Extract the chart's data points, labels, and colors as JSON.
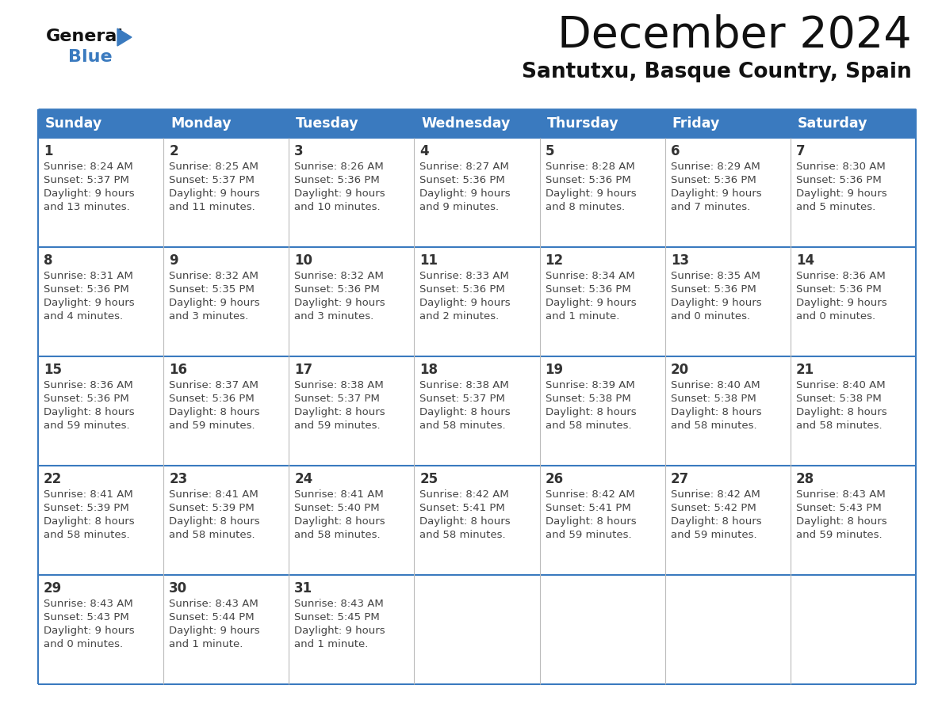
{
  "title": "December 2024",
  "subtitle": "Santutxu, Basque Country, Spain",
  "header_color": "#3a7abf",
  "header_text_color": "#ffffff",
  "days_of_week": [
    "Sunday",
    "Monday",
    "Tuesday",
    "Wednesday",
    "Thursday",
    "Friday",
    "Saturday"
  ],
  "cell_bg_color": "#ffffff",
  "border_color": "#3a7abf",
  "row_sep_color": "#3a7abf",
  "day_num_color": "#333333",
  "text_color": "#444444",
  "calendar": [
    [
      {
        "day": 1,
        "sunrise": "8:24 AM",
        "sunset": "5:37 PM",
        "daylight_h": "9 hours",
        "daylight_m": "and 13 minutes."
      },
      {
        "day": 2,
        "sunrise": "8:25 AM",
        "sunset": "5:37 PM",
        "daylight_h": "9 hours",
        "daylight_m": "and 11 minutes."
      },
      {
        "day": 3,
        "sunrise": "8:26 AM",
        "sunset": "5:36 PM",
        "daylight_h": "9 hours",
        "daylight_m": "and 10 minutes."
      },
      {
        "day": 4,
        "sunrise": "8:27 AM",
        "sunset": "5:36 PM",
        "daylight_h": "9 hours",
        "daylight_m": "and 9 minutes."
      },
      {
        "day": 5,
        "sunrise": "8:28 AM",
        "sunset": "5:36 PM",
        "daylight_h": "9 hours",
        "daylight_m": "and 8 minutes."
      },
      {
        "day": 6,
        "sunrise": "8:29 AM",
        "sunset": "5:36 PM",
        "daylight_h": "9 hours",
        "daylight_m": "and 7 minutes."
      },
      {
        "day": 7,
        "sunrise": "8:30 AM",
        "sunset": "5:36 PM",
        "daylight_h": "9 hours",
        "daylight_m": "and 5 minutes."
      }
    ],
    [
      {
        "day": 8,
        "sunrise": "8:31 AM",
        "sunset": "5:36 PM",
        "daylight_h": "9 hours",
        "daylight_m": "and 4 minutes."
      },
      {
        "day": 9,
        "sunrise": "8:32 AM",
        "sunset": "5:35 PM",
        "daylight_h": "9 hours",
        "daylight_m": "and 3 minutes."
      },
      {
        "day": 10,
        "sunrise": "8:32 AM",
        "sunset": "5:36 PM",
        "daylight_h": "9 hours",
        "daylight_m": "and 3 minutes."
      },
      {
        "day": 11,
        "sunrise": "8:33 AM",
        "sunset": "5:36 PM",
        "daylight_h": "9 hours",
        "daylight_m": "and 2 minutes."
      },
      {
        "day": 12,
        "sunrise": "8:34 AM",
        "sunset": "5:36 PM",
        "daylight_h": "9 hours",
        "daylight_m": "and 1 minute."
      },
      {
        "day": 13,
        "sunrise": "8:35 AM",
        "sunset": "5:36 PM",
        "daylight_h": "9 hours",
        "daylight_m": "and 0 minutes."
      },
      {
        "day": 14,
        "sunrise": "8:36 AM",
        "sunset": "5:36 PM",
        "daylight_h": "9 hours",
        "daylight_m": "and 0 minutes."
      }
    ],
    [
      {
        "day": 15,
        "sunrise": "8:36 AM",
        "sunset": "5:36 PM",
        "daylight_h": "8 hours",
        "daylight_m": "and 59 minutes."
      },
      {
        "day": 16,
        "sunrise": "8:37 AM",
        "sunset": "5:36 PM",
        "daylight_h": "8 hours",
        "daylight_m": "and 59 minutes."
      },
      {
        "day": 17,
        "sunrise": "8:38 AM",
        "sunset": "5:37 PM",
        "daylight_h": "8 hours",
        "daylight_m": "and 59 minutes."
      },
      {
        "day": 18,
        "sunrise": "8:38 AM",
        "sunset": "5:37 PM",
        "daylight_h": "8 hours",
        "daylight_m": "and 58 minutes."
      },
      {
        "day": 19,
        "sunrise": "8:39 AM",
        "sunset": "5:38 PM",
        "daylight_h": "8 hours",
        "daylight_m": "and 58 minutes."
      },
      {
        "day": 20,
        "sunrise": "8:40 AM",
        "sunset": "5:38 PM",
        "daylight_h": "8 hours",
        "daylight_m": "and 58 minutes."
      },
      {
        "day": 21,
        "sunrise": "8:40 AM",
        "sunset": "5:38 PM",
        "daylight_h": "8 hours",
        "daylight_m": "and 58 minutes."
      }
    ],
    [
      {
        "day": 22,
        "sunrise": "8:41 AM",
        "sunset": "5:39 PM",
        "daylight_h": "8 hours",
        "daylight_m": "and 58 minutes."
      },
      {
        "day": 23,
        "sunrise": "8:41 AM",
        "sunset": "5:39 PM",
        "daylight_h": "8 hours",
        "daylight_m": "and 58 minutes."
      },
      {
        "day": 24,
        "sunrise": "8:41 AM",
        "sunset": "5:40 PM",
        "daylight_h": "8 hours",
        "daylight_m": "and 58 minutes."
      },
      {
        "day": 25,
        "sunrise": "8:42 AM",
        "sunset": "5:41 PM",
        "daylight_h": "8 hours",
        "daylight_m": "and 58 minutes."
      },
      {
        "day": 26,
        "sunrise": "8:42 AM",
        "sunset": "5:41 PM",
        "daylight_h": "8 hours",
        "daylight_m": "and 59 minutes."
      },
      {
        "day": 27,
        "sunrise": "8:42 AM",
        "sunset": "5:42 PM",
        "daylight_h": "8 hours",
        "daylight_m": "and 59 minutes."
      },
      {
        "day": 28,
        "sunrise": "8:43 AM",
        "sunset": "5:43 PM",
        "daylight_h": "8 hours",
        "daylight_m": "and 59 minutes."
      }
    ],
    [
      {
        "day": 29,
        "sunrise": "8:43 AM",
        "sunset": "5:43 PM",
        "daylight_h": "9 hours",
        "daylight_m": "and 0 minutes."
      },
      {
        "day": 30,
        "sunrise": "8:43 AM",
        "sunset": "5:44 PM",
        "daylight_h": "9 hours",
        "daylight_m": "and 1 minute."
      },
      {
        "day": 31,
        "sunrise": "8:43 AM",
        "sunset": "5:45 PM",
        "daylight_h": "9 hours",
        "daylight_m": "and 1 minute."
      },
      null,
      null,
      null,
      null
    ]
  ],
  "logo_color_general": "#111111",
  "logo_color_blue": "#3a7abf",
  "logo_triangle_color": "#3a7abf",
  "fig_width": 11.88,
  "fig_height": 9.18,
  "dpi": 100
}
